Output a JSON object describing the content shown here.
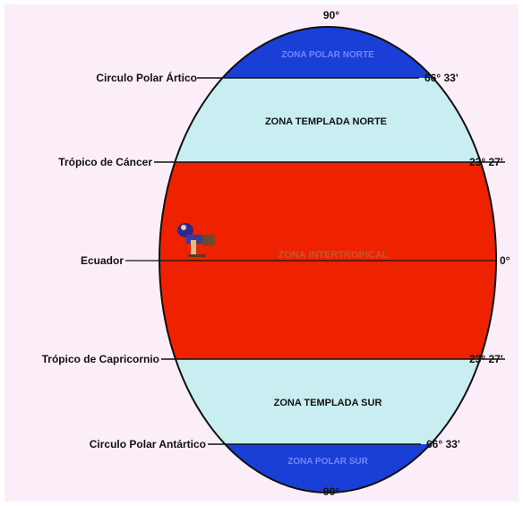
{
  "colors": {
    "background": "#fbeef8",
    "polar_zone": "#1a3fd6",
    "temperate_zone": "#c9eef2",
    "intertropical_zone": "#ee2200",
    "outline": "#111111",
    "text": "#111111"
  },
  "poles": {
    "north_label": "90°",
    "south_label": "90°"
  },
  "lines": {
    "arctic_circle": {
      "name": "Circulo Polar Ártico",
      "degree": "66° 33'"
    },
    "tropic_of_cancer": {
      "name": "Trópico de Cáncer",
      "degree": "23° 27'"
    },
    "equator": {
      "name": "Ecuador",
      "degree": "0°"
    },
    "tropic_of_capricorn": {
      "name": "Trópico de Capricornio",
      "degree": "23° 27'"
    },
    "antarctic_circle": {
      "name": "Circulo Polar Antártico",
      "degree": "66° 33'"
    }
  },
  "zones": {
    "north_polar": "ZONA POLAR NORTE",
    "north_temperate": "ZONA TEMPLADA NORTE",
    "intertropical": "ZONA INTERTROPICAL",
    "south_temperate": "ZONA TEMPLADA SUR",
    "south_polar": "ZONA POLAR SUR"
  },
  "figure_icon": "person-sitting-icon"
}
